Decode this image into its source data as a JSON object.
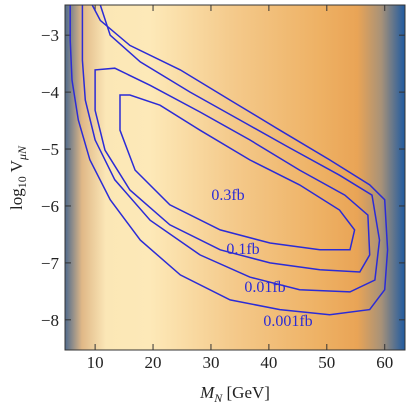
{
  "chart_data": {
    "type": "contour",
    "xlabel": {
      "main": "M",
      "sub": "N",
      "rest": " [GeV]"
    },
    "ylabel": {
      "main": "log",
      "sub": "10",
      "rest": " V",
      "sub2": "μN"
    },
    "xlim": [
      4.8,
      63.5
    ],
    "ylim": [
      -8.53,
      -2.47
    ],
    "xticks": [
      10,
      20,
      30,
      40,
      50,
      60
    ],
    "yticks": [
      {
        "value": -3,
        "label": "−3"
      },
      {
        "value": -4,
        "label": "−4"
      },
      {
        "value": -5,
        "label": "−5"
      },
      {
        "value": -6,
        "label": "−6"
      },
      {
        "value": -7,
        "label": "−7"
      },
      {
        "value": -8,
        "label": "−8"
      }
    ],
    "series": [
      {
        "name": "0.3fb",
        "color": "#2b2bd6",
        "closed": true,
        "x": [
          14.3,
          14.3,
          16.9,
          22.9,
          31.6,
          40.2,
          48.8,
          54.0,
          54.8,
          52.2,
          45.3,
          36.7,
          28.1,
          21.2,
          16.0
        ],
        "y": [
          -4.05,
          -4.67,
          -5.37,
          -5.98,
          -6.42,
          -6.65,
          -6.77,
          -6.77,
          -6.42,
          -6.07,
          -5.63,
          -5.19,
          -4.67,
          -4.23,
          -4.05
        ]
      },
      {
        "name": "0.1fb",
        "color": "#2b2bd6",
        "closed": true,
        "x": [
          10.0,
          10.0,
          11.7,
          16.0,
          22.9,
          31.6,
          40.2,
          48.8,
          55.7,
          57.4,
          57.1,
          53.1,
          45.3,
          36.7,
          28.1,
          19.5,
          13.4
        ],
        "y": [
          -3.61,
          -4.32,
          -5.02,
          -5.72,
          -6.33,
          -6.77,
          -7.0,
          -7.12,
          -7.16,
          -6.86,
          -6.16,
          -5.81,
          -5.37,
          -4.84,
          -4.35,
          -3.88,
          -3.58
        ]
      },
      {
        "name": "0.01fb",
        "color": "#2b2bd6",
        "closed": false,
        "x": [
          7.8,
          7.8,
          8.3,
          10.0,
          13.4,
          19.5,
          28.1,
          36.7,
          45.3,
          54.0,
          58.3,
          59.1,
          57.8,
          52.2,
          43.6,
          35.0,
          26.4,
          17.8,
          12.6,
          10.9
        ],
        "y": [
          -2.47,
          -3.44,
          -4.14,
          -4.84,
          -5.54,
          -6.25,
          -6.86,
          -7.25,
          -7.47,
          -7.51,
          -7.3,
          -6.6,
          -5.81,
          -5.46,
          -4.98,
          -4.49,
          -4.0,
          -3.47,
          -3.0,
          -2.47
        ]
      },
      {
        "name": "0.001fb",
        "color": "#2b2bd6",
        "closed": false,
        "x": [
          5.7,
          5.7,
          6.0,
          7.1,
          9.1,
          12.6,
          17.8,
          24.7,
          33.3,
          41.9,
          50.5,
          57.4,
          60.0,
          60.5,
          60.0,
          57.4,
          50.5,
          41.9,
          33.3,
          24.7,
          16.0,
          10.9,
          9.5
        ],
        "y": [
          -2.47,
          -3.09,
          -3.79,
          -4.49,
          -5.19,
          -5.89,
          -6.6,
          -7.21,
          -7.65,
          -7.82,
          -7.91,
          -7.82,
          -7.47,
          -6.77,
          -5.89,
          -5.63,
          -5.19,
          -4.67,
          -4.14,
          -3.61,
          -3.18,
          -2.74,
          -2.47
        ]
      }
    ]
  }
}
